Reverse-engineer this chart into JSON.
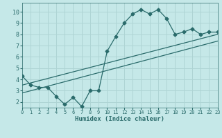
{
  "title": "",
  "xlabel": "Humidex (Indice chaleur)",
  "ylabel": "",
  "background_color": "#c5e8e8",
  "grid_color": "#aed4d4",
  "line_color": "#2a6b6b",
  "main_x": [
    0,
    1,
    2,
    3,
    4,
    5,
    6,
    7,
    8,
    9,
    10,
    11,
    12,
    13,
    14,
    15,
    16,
    17,
    18,
    19,
    20,
    21,
    22,
    23
  ],
  "main_y": [
    4.3,
    3.5,
    3.3,
    3.3,
    2.5,
    1.8,
    2.4,
    1.6,
    3.0,
    3.0,
    6.5,
    7.8,
    9.0,
    9.8,
    10.2,
    9.8,
    10.2,
    9.4,
    8.0,
    8.2,
    8.5,
    8.0,
    8.2,
    8.2
  ],
  "trend1_x": [
    0,
    23
  ],
  "trend1_y": [
    3.5,
    8.0
  ],
  "trend2_x": [
    0,
    23
  ],
  "trend2_y": [
    2.8,
    7.4
  ],
  "xlim": [
    0,
    23
  ],
  "ylim": [
    1.5,
    10.8
  ],
  "yticks": [
    2,
    3,
    4,
    5,
    6,
    7,
    8,
    9,
    10
  ],
  "xticks": [
    0,
    1,
    2,
    3,
    4,
    5,
    6,
    7,
    8,
    9,
    10,
    11,
    12,
    13,
    14,
    15,
    16,
    17,
    18,
    19,
    20,
    21,
    22,
    23
  ]
}
